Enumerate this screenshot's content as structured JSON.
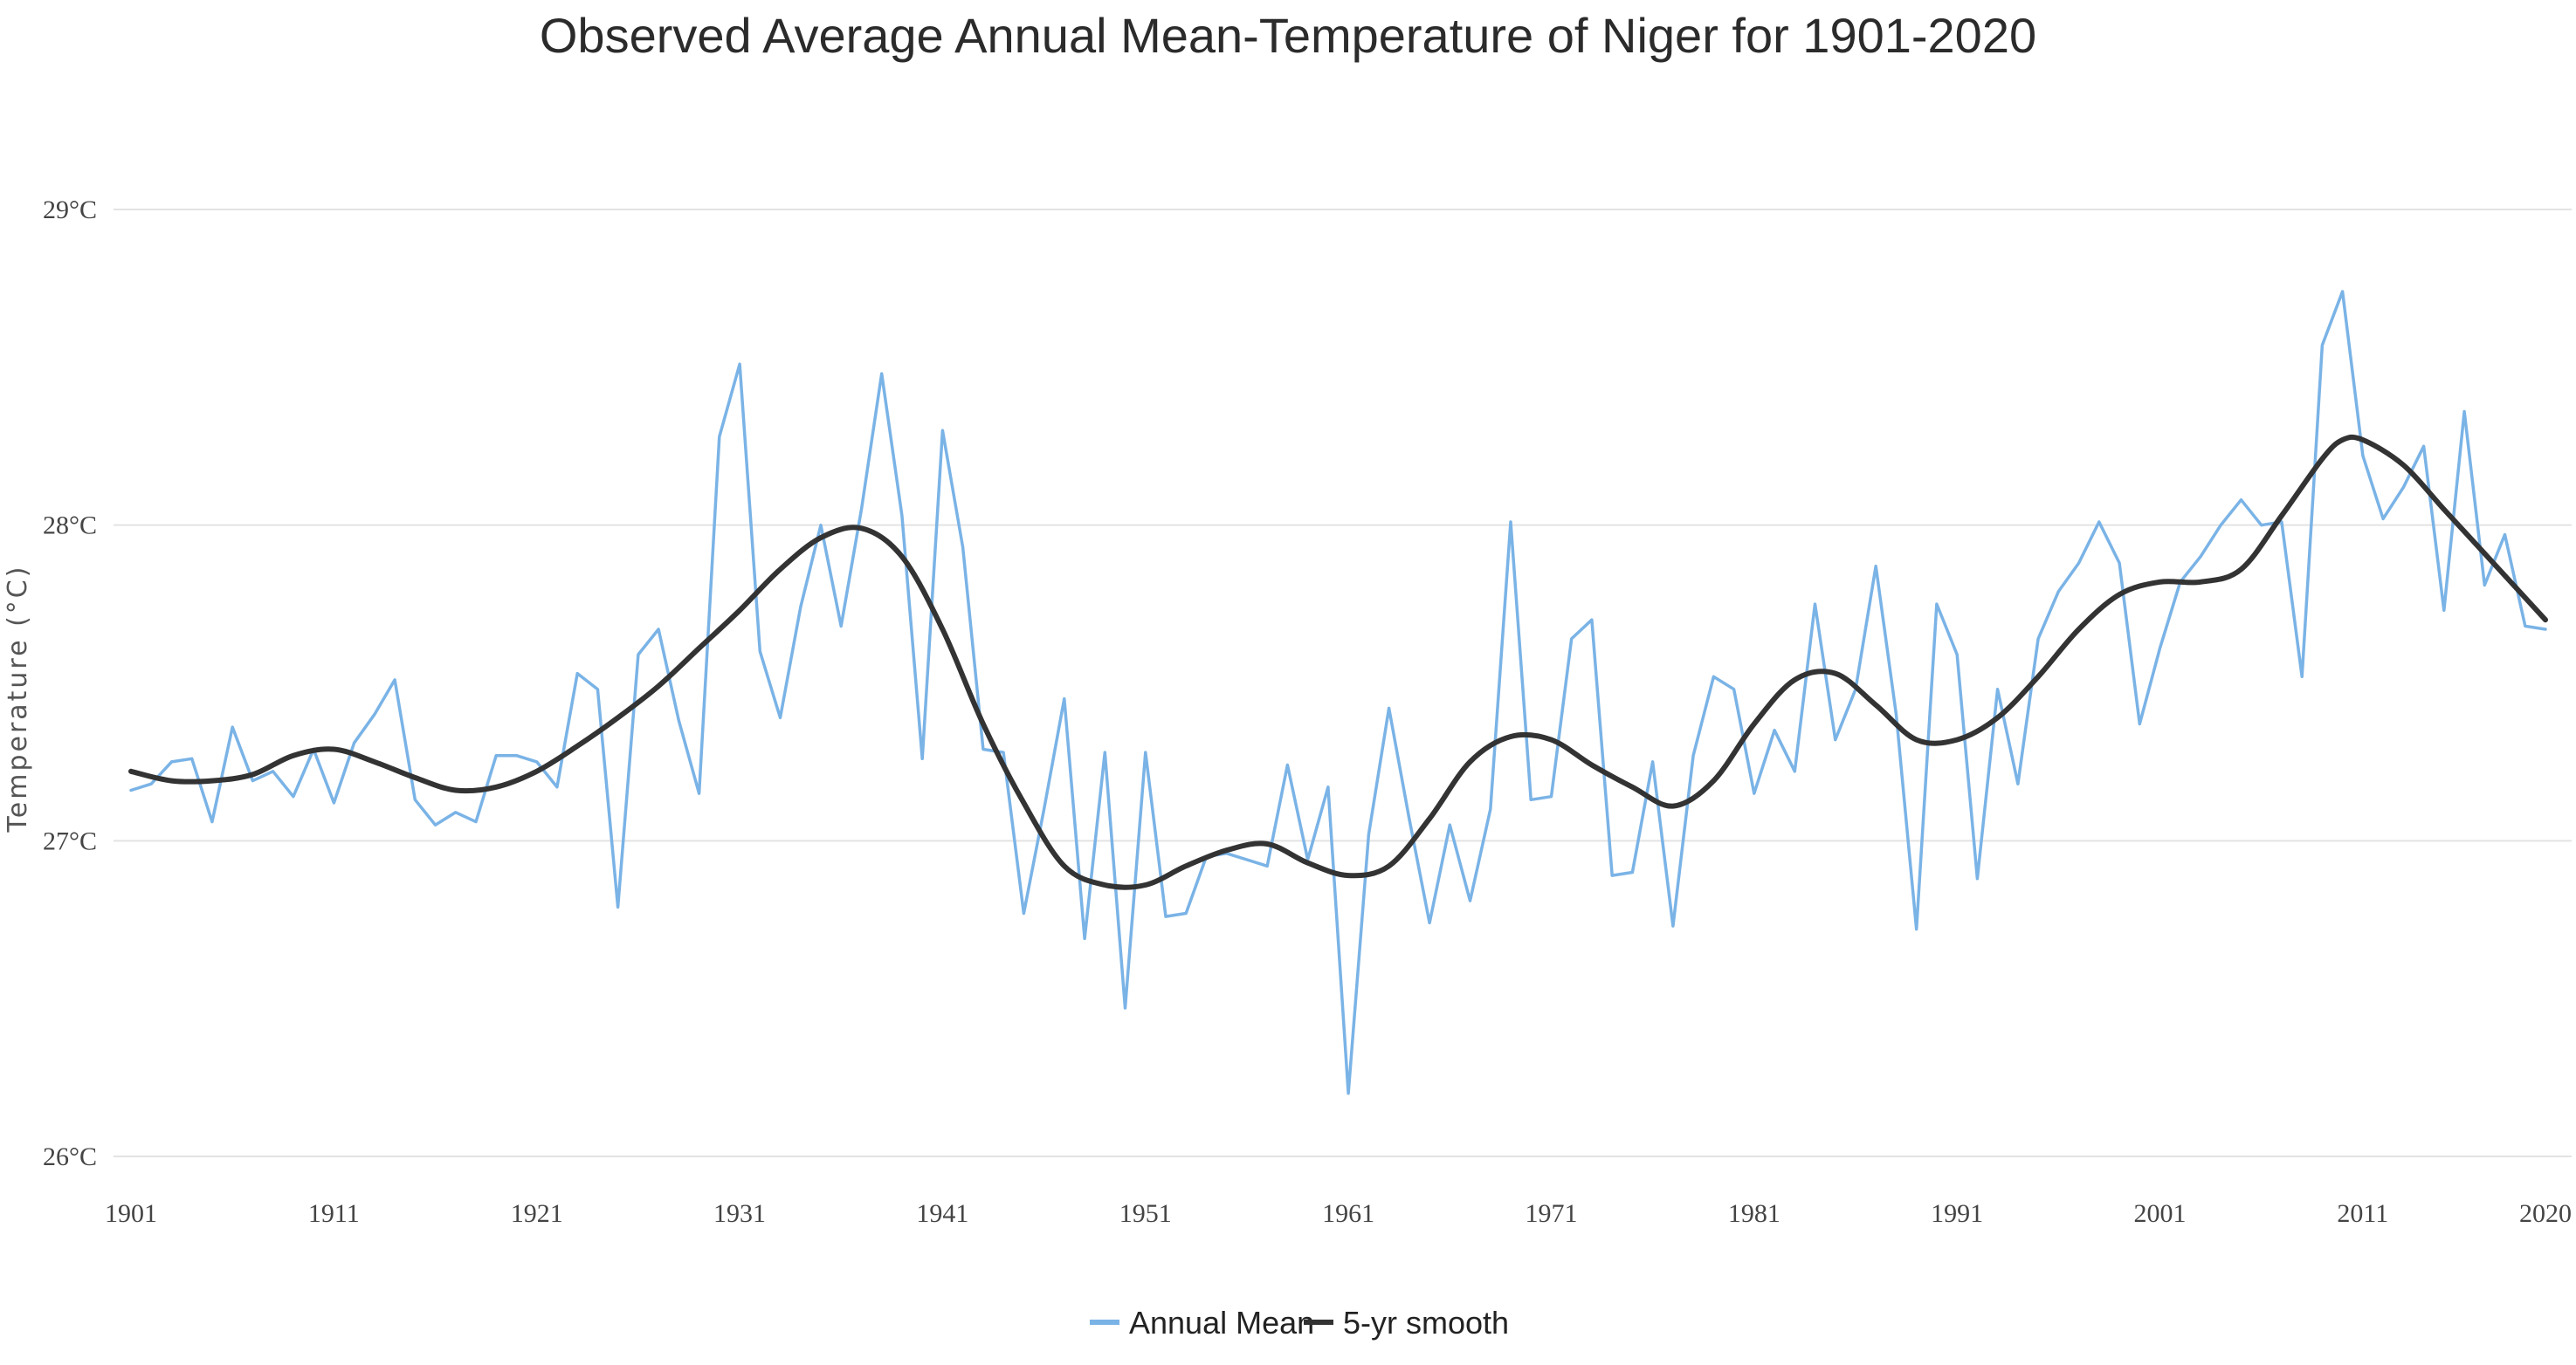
{
  "chart_data": {
    "type": "line",
    "title": "Observed Average Annual Mean-Temperature of Niger for 1901-2020",
    "xlabel": "",
    "ylabel": "Temperature (°C)",
    "xlim": [
      1901,
      2020
    ],
    "ylim": [
      26,
      29
    ],
    "grid": true,
    "legend_position": "bottom-center",
    "x_ticks": [
      {
        "value": 1901,
        "label": "1901"
      },
      {
        "value": 1911,
        "label": "1911"
      },
      {
        "value": 1921,
        "label": "1921"
      },
      {
        "value": 1931,
        "label": "1931"
      },
      {
        "value": 1941,
        "label": "1941"
      },
      {
        "value": 1951,
        "label": "1951"
      },
      {
        "value": 1961,
        "label": "1961"
      },
      {
        "value": 1971,
        "label": "1971"
      },
      {
        "value": 1981,
        "label": "1981"
      },
      {
        "value": 1991,
        "label": "1991"
      },
      {
        "value": 2001,
        "label": "2001"
      },
      {
        "value": 2011,
        "label": "2011"
      },
      {
        "value": 2020,
        "label": "2020"
      }
    ],
    "y_ticks": [
      {
        "value": 26,
        "label": "26°C"
      },
      {
        "value": 27,
        "label": "27°C"
      },
      {
        "value": 28,
        "label": "28°C"
      },
      {
        "value": 29,
        "label": "29°C"
      }
    ],
    "series": [
      {
        "name": "Annual Mean",
        "color": "#7ab3e6",
        "x": [
          1901,
          1902,
          1903,
          1904,
          1905,
          1906,
          1907,
          1908,
          1909,
          1910,
          1911,
          1912,
          1913,
          1914,
          1915,
          1916,
          1917,
          1918,
          1919,
          1920,
          1921,
          1922,
          1923,
          1924,
          1925,
          1926,
          1927,
          1928,
          1929,
          1930,
          1931,
          1932,
          1933,
          1934,
          1935,
          1936,
          1937,
          1938,
          1939,
          1940,
          1941,
          1942,
          1943,
          1944,
          1945,
          1946,
          1947,
          1948,
          1949,
          1950,
          1951,
          1952,
          1953,
          1954,
          1955,
          1956,
          1957,
          1958,
          1959,
          1960,
          1961,
          1962,
          1963,
          1964,
          1965,
          1966,
          1967,
          1968,
          1969,
          1970,
          1971,
          1972,
          1973,
          1974,
          1975,
          1976,
          1977,
          1978,
          1979,
          1980,
          1981,
          1982,
          1983,
          1984,
          1985,
          1986,
          1987,
          1988,
          1989,
          1990,
          1991,
          1992,
          1993,
          1994,
          1995,
          1996,
          1997,
          1998,
          1999,
          2000,
          2001,
          2002,
          2003,
          2004,
          2005,
          2006,
          2007,
          2008,
          2009,
          2010,
          2011,
          2012,
          2013,
          2014,
          2015,
          2016,
          2017,
          2018,
          2019,
          2020
        ],
        "values": [
          27.16,
          27.18,
          27.25,
          27.26,
          27.06,
          27.36,
          27.19,
          27.22,
          27.14,
          27.29,
          27.12,
          27.31,
          27.4,
          27.51,
          27.13,
          27.05,
          27.09,
          27.06,
          27.27,
          27.27,
          27.25,
          27.17,
          27.53,
          27.48,
          26.79,
          27.59,
          27.67,
          27.38,
          27.15,
          28.28,
          28.51,
          27.6,
          27.39,
          27.74,
          28.0,
          27.68,
          28.05,
          28.48,
          28.03,
          27.26,
          28.3,
          27.93,
          27.29,
          27.28,
          26.77,
          27.1,
          27.45,
          26.69,
          27.28,
          26.47,
          27.28,
          26.76,
          26.77,
          26.95,
          26.96,
          26.94,
          26.92,
          27.24,
          26.94,
          27.17,
          26.2,
          27.02,
          27.42,
          27.07,
          26.74,
          27.05,
          26.81,
          27.1,
          28.01,
          27.13,
          27.14,
          27.64,
          27.7,
          26.89,
          26.9,
          27.25,
          26.73,
          27.27,
          27.52,
          27.48,
          27.15,
          27.35,
          27.22,
          27.75,
          27.32,
          27.48,
          27.87,
          27.4,
          26.72,
          27.75,
          27.59,
          26.88,
          27.48,
          27.18,
          27.64,
          27.79,
          27.88,
          28.01,
          27.88,
          27.37,
          27.61,
          27.82,
          27.9,
          28.0,
          28.08,
          28.0,
          28.01,
          27.52,
          28.57,
          28.74,
          28.22,
          28.02,
          28.12,
          28.25,
          27.73,
          28.36,
          27.81,
          27.97,
          27.68,
          27.67
        ]
      },
      {
        "name": "5-yr smooth",
        "color": "#333333",
        "x": [
          1901,
          1903,
          1905,
          1907,
          1909,
          1911,
          1913,
          1915,
          1917,
          1919,
          1921,
          1923,
          1925,
          1927,
          1929,
          1931,
          1933,
          1935,
          1937,
          1939,
          1941,
          1943,
          1945,
          1947,
          1949,
          1951,
          1953,
          1955,
          1957,
          1959,
          1961,
          1963,
          1965,
          1967,
          1969,
          1971,
          1973,
          1975,
          1977,
          1979,
          1981,
          1983,
          1985,
          1987,
          1989,
          1991,
          1993,
          1995,
          1997,
          1999,
          2001,
          2003,
          2005,
          2007,
          2009,
          2010,
          2011,
          2013,
          2015,
          2017,
          2019,
          2020
        ],
        "values": [
          27.22,
          27.19,
          27.19,
          27.21,
          27.27,
          27.29,
          27.25,
          27.2,
          27.16,
          27.17,
          27.22,
          27.3,
          27.39,
          27.49,
          27.61,
          27.73,
          27.86,
          27.96,
          27.99,
          27.9,
          27.67,
          27.37,
          27.12,
          26.92,
          26.86,
          26.86,
          26.92,
          26.97,
          26.99,
          26.93,
          26.89,
          26.92,
          27.07,
          27.25,
          27.33,
          27.32,
          27.24,
          27.17,
          27.11,
          27.19,
          27.37,
          27.51,
          27.53,
          27.43,
          27.32,
          27.32,
          27.39,
          27.52,
          27.67,
          27.78,
          27.82,
          27.82,
          27.86,
          28.03,
          28.21,
          28.27,
          28.27,
          28.19,
          28.05,
          27.91,
          27.77,
          27.7
        ]
      }
    ]
  },
  "legend": {
    "items": [
      {
        "label": "Annual Mean",
        "color": "#7ab3e6"
      },
      {
        "label": "5-yr smooth",
        "color": "#333333"
      }
    ]
  }
}
